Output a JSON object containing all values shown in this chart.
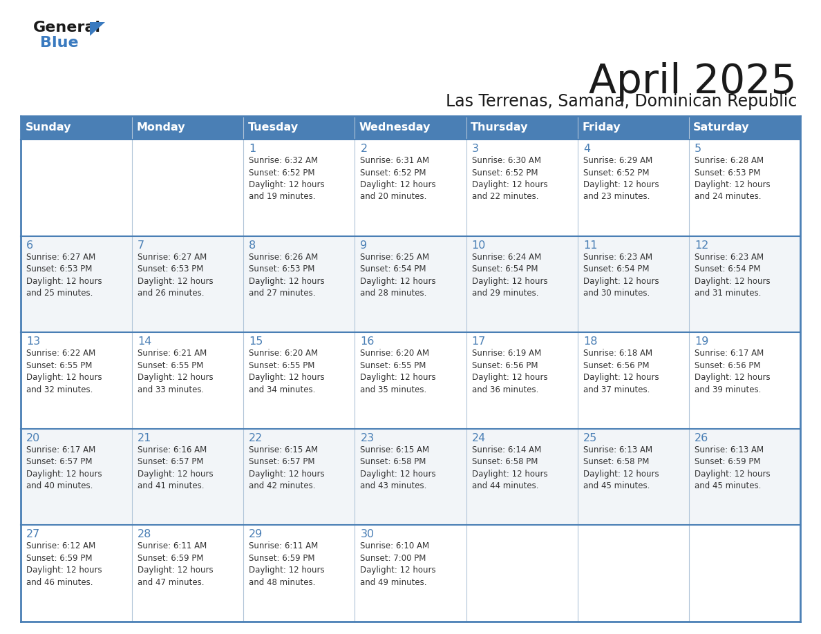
{
  "title": "April 2025",
  "subtitle": "Las Terrenas, Samana, Dominican Republic",
  "days_of_week": [
    "Sunday",
    "Monday",
    "Tuesday",
    "Wednesday",
    "Thursday",
    "Friday",
    "Saturday"
  ],
  "header_bg": "#4a7fb5",
  "header_text": "#ffffff",
  "row_bg_odd": "#f2f5f8",
  "row_bg_even": "#ffffff",
  "border_color_dark": "#4a7fb5",
  "border_color_light": "#b0c4d8",
  "day_number_color": "#4a7fb5",
  "cell_text_color": "#333333",
  "title_color": "#1a1a1a",
  "subtitle_color": "#1a1a1a",
  "logo_general_color": "#1a1a1a",
  "logo_blue_color": "#3a7abf",
  "weeks": [
    [
      {
        "day": null,
        "info": null
      },
      {
        "day": null,
        "info": null
      },
      {
        "day": 1,
        "info": "Sunrise: 6:32 AM\nSunset: 6:52 PM\nDaylight: 12 hours\nand 19 minutes."
      },
      {
        "day": 2,
        "info": "Sunrise: 6:31 AM\nSunset: 6:52 PM\nDaylight: 12 hours\nand 20 minutes."
      },
      {
        "day": 3,
        "info": "Sunrise: 6:30 AM\nSunset: 6:52 PM\nDaylight: 12 hours\nand 22 minutes."
      },
      {
        "day": 4,
        "info": "Sunrise: 6:29 AM\nSunset: 6:52 PM\nDaylight: 12 hours\nand 23 minutes."
      },
      {
        "day": 5,
        "info": "Sunrise: 6:28 AM\nSunset: 6:53 PM\nDaylight: 12 hours\nand 24 minutes."
      }
    ],
    [
      {
        "day": 6,
        "info": "Sunrise: 6:27 AM\nSunset: 6:53 PM\nDaylight: 12 hours\nand 25 minutes."
      },
      {
        "day": 7,
        "info": "Sunrise: 6:27 AM\nSunset: 6:53 PM\nDaylight: 12 hours\nand 26 minutes."
      },
      {
        "day": 8,
        "info": "Sunrise: 6:26 AM\nSunset: 6:53 PM\nDaylight: 12 hours\nand 27 minutes."
      },
      {
        "day": 9,
        "info": "Sunrise: 6:25 AM\nSunset: 6:54 PM\nDaylight: 12 hours\nand 28 minutes."
      },
      {
        "day": 10,
        "info": "Sunrise: 6:24 AM\nSunset: 6:54 PM\nDaylight: 12 hours\nand 29 minutes."
      },
      {
        "day": 11,
        "info": "Sunrise: 6:23 AM\nSunset: 6:54 PM\nDaylight: 12 hours\nand 30 minutes."
      },
      {
        "day": 12,
        "info": "Sunrise: 6:23 AM\nSunset: 6:54 PM\nDaylight: 12 hours\nand 31 minutes."
      }
    ],
    [
      {
        "day": 13,
        "info": "Sunrise: 6:22 AM\nSunset: 6:55 PM\nDaylight: 12 hours\nand 32 minutes."
      },
      {
        "day": 14,
        "info": "Sunrise: 6:21 AM\nSunset: 6:55 PM\nDaylight: 12 hours\nand 33 minutes."
      },
      {
        "day": 15,
        "info": "Sunrise: 6:20 AM\nSunset: 6:55 PM\nDaylight: 12 hours\nand 34 minutes."
      },
      {
        "day": 16,
        "info": "Sunrise: 6:20 AM\nSunset: 6:55 PM\nDaylight: 12 hours\nand 35 minutes."
      },
      {
        "day": 17,
        "info": "Sunrise: 6:19 AM\nSunset: 6:56 PM\nDaylight: 12 hours\nand 36 minutes."
      },
      {
        "day": 18,
        "info": "Sunrise: 6:18 AM\nSunset: 6:56 PM\nDaylight: 12 hours\nand 37 minutes."
      },
      {
        "day": 19,
        "info": "Sunrise: 6:17 AM\nSunset: 6:56 PM\nDaylight: 12 hours\nand 39 minutes."
      }
    ],
    [
      {
        "day": 20,
        "info": "Sunrise: 6:17 AM\nSunset: 6:57 PM\nDaylight: 12 hours\nand 40 minutes."
      },
      {
        "day": 21,
        "info": "Sunrise: 6:16 AM\nSunset: 6:57 PM\nDaylight: 12 hours\nand 41 minutes."
      },
      {
        "day": 22,
        "info": "Sunrise: 6:15 AM\nSunset: 6:57 PM\nDaylight: 12 hours\nand 42 minutes."
      },
      {
        "day": 23,
        "info": "Sunrise: 6:15 AM\nSunset: 6:58 PM\nDaylight: 12 hours\nand 43 minutes."
      },
      {
        "day": 24,
        "info": "Sunrise: 6:14 AM\nSunset: 6:58 PM\nDaylight: 12 hours\nand 44 minutes."
      },
      {
        "day": 25,
        "info": "Sunrise: 6:13 AM\nSunset: 6:58 PM\nDaylight: 12 hours\nand 45 minutes."
      },
      {
        "day": 26,
        "info": "Sunrise: 6:13 AM\nSunset: 6:59 PM\nDaylight: 12 hours\nand 45 minutes."
      }
    ],
    [
      {
        "day": 27,
        "info": "Sunrise: 6:12 AM\nSunset: 6:59 PM\nDaylight: 12 hours\nand 46 minutes."
      },
      {
        "day": 28,
        "info": "Sunrise: 6:11 AM\nSunset: 6:59 PM\nDaylight: 12 hours\nand 47 minutes."
      },
      {
        "day": 29,
        "info": "Sunrise: 6:11 AM\nSunset: 6:59 PM\nDaylight: 12 hours\nand 48 minutes."
      },
      {
        "day": 30,
        "info": "Sunrise: 6:10 AM\nSunset: 7:00 PM\nDaylight: 12 hours\nand 49 minutes."
      },
      {
        "day": null,
        "info": null
      },
      {
        "day": null,
        "info": null
      },
      {
        "day": null,
        "info": null
      }
    ]
  ]
}
